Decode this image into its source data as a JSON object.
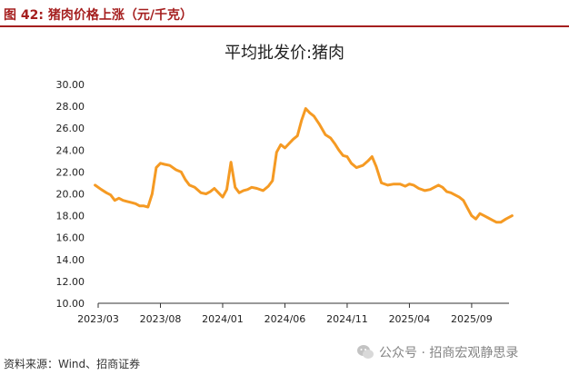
{
  "figure": {
    "label": "图 42:  猪肉价格上涨（元/千克）"
  },
  "source": "资料来源：Wind、招商证券",
  "watermark": {
    "icon": "wechat-icon",
    "text": "公众号 · 招商宏观静思录"
  },
  "colors": {
    "line": "#F59A23",
    "header": "#A51F1F"
  },
  "chart_data": {
    "type": "line",
    "title": "平均批发价:猪肉",
    "xlabel": "",
    "ylabel": "",
    "ylim": [
      10,
      30
    ],
    "yticks": [
      "30.00",
      "28.00",
      "26.00",
      "24.00",
      "22.00",
      "20.00",
      "18.00",
      "16.00",
      "14.00",
      "12.00",
      "10.00"
    ],
    "xticks": [
      "2023/03",
      "2023/08",
      "2024/01",
      "2024/06",
      "2024/11",
      "2025/04",
      "2025/09"
    ],
    "x_start": "2023-03",
    "x_end": "2025-12",
    "grid": false,
    "legend": "none",
    "series": [
      {
        "x": [
          "2023-03",
          "2023-03",
          "2023-04",
          "2023-04",
          "2023-04",
          "2023-05",
          "2023-05",
          "2023-05",
          "2023-06",
          "2023-06",
          "2023-06",
          "2023-07",
          "2023-07",
          "2023-07",
          "2023-08",
          "2023-08",
          "2023-08",
          "2023-09",
          "2023-09",
          "2023-10",
          "2023-10",
          "2023-10",
          "2023-11",
          "2023-11",
          "2023-12",
          "2023-12",
          "2023-12",
          "2024-01",
          "2024-01",
          "2024-01",
          "2024-02",
          "2024-02",
          "2024-02",
          "2024-03",
          "2024-03",
          "2024-03",
          "2024-04",
          "2024-04",
          "2024-05",
          "2024-05",
          "2024-05",
          "2024-06",
          "2024-06",
          "2024-06",
          "2024-07",
          "2024-07",
          "2024-07",
          "2024-08",
          "2024-08",
          "2024-08",
          "2024-09",
          "2024-09",
          "2024-10",
          "2024-10",
          "2024-10",
          "2024-11",
          "2024-11",
          "2024-11",
          "2024-12",
          "2024-12",
          "2025-01",
          "2025-01",
          "2025-01",
          "2025-02",
          "2025-02",
          "2025-03",
          "2025-03",
          "2025-04",
          "2025-04",
          "2025-04",
          "2025-05",
          "2025-05",
          "2025-06",
          "2025-06",
          "2025-06",
          "2025-07",
          "2025-07",
          "2025-07",
          "2025-08",
          "2025-08",
          "2025-08",
          "2025-09",
          "2025-09",
          "2025-09",
          "2025-10",
          "2025-10",
          "2025-10",
          "2025-11",
          "2025-11",
          "2025-11",
          "2025-12",
          "2025-12"
        ],
        "values": [
          20.8,
          20.4,
          20.1,
          19.9,
          19.4,
          19.6,
          19.4,
          19.3,
          19.2,
          19.1,
          18.9,
          18.9,
          18.8,
          20.0,
          22.4,
          22.8,
          22.7,
          22.6,
          22.2,
          22.0,
          21.3,
          20.8,
          20.6,
          20.1,
          20.0,
          20.2,
          20.5,
          20.1,
          19.7,
          20.4,
          22.9,
          20.6,
          20.1,
          20.3,
          20.4,
          20.6,
          20.5,
          20.3,
          20.7,
          21.2,
          23.8,
          24.5,
          24.2,
          24.6,
          25.0,
          25.3,
          26.7,
          27.8,
          27.4,
          27.1,
          26.4,
          25.4,
          25.1,
          24.6,
          24.0,
          23.5,
          23.4,
          22.8,
          22.4,
          22.6,
          23.0,
          23.4,
          22.5,
          21.0,
          20.8,
          20.9,
          20.9,
          20.7,
          20.9,
          20.8,
          20.5,
          20.3,
          20.4,
          20.6,
          20.8,
          20.6,
          20.2,
          20.1,
          19.9,
          19.7,
          19.4,
          18.7,
          18.0,
          17.7,
          18.2,
          18.0,
          17.8,
          17.6,
          17.4,
          17.4,
          17.7,
          18.0
        ]
      }
    ]
  }
}
